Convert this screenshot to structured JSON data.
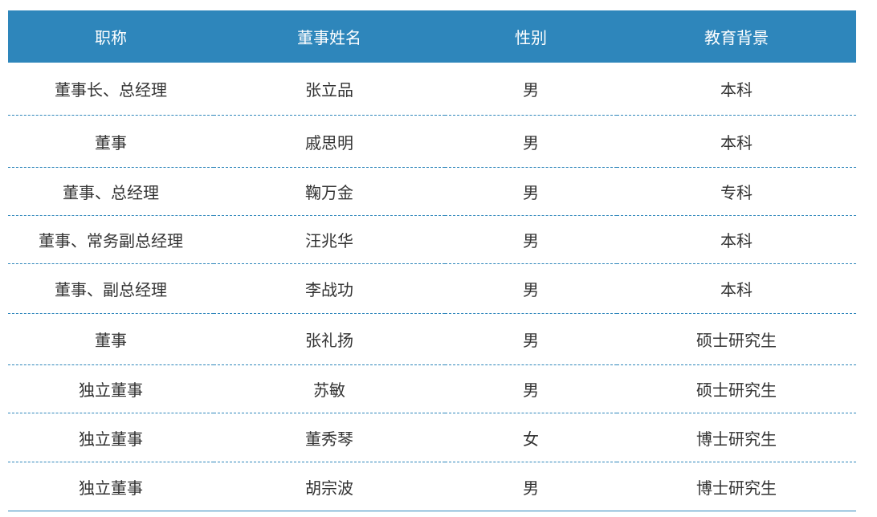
{
  "table": {
    "headers": [
      "职称",
      "董事姓名",
      "性别",
      "教育背景"
    ],
    "rows": [
      [
        "董事长、总经理",
        "张立品",
        "男",
        "本科"
      ],
      [
        "董事",
        "戚思明",
        "男",
        "本科"
      ],
      [
        "董事、总经理",
        "鞠万金",
        "男",
        "专科"
      ],
      [
        "董事、常务副总经理",
        "汪兆华",
        "男",
        "本科"
      ],
      [
        "董事、副总经理",
        "李战功",
        "男",
        "本科"
      ],
      [
        "董事",
        "张礼扬",
        "男",
        "硕士研究生"
      ],
      [
        "独立董事",
        "苏敏",
        "男",
        "硕士研究生"
      ],
      [
        "独立董事",
        "董秀琴",
        "女",
        "博士研究生"
      ],
      [
        "独立董事",
        "胡宗波",
        "男",
        "博士研究生"
      ]
    ],
    "colors": {
      "header_bg": "#2e86bb",
      "divider": "#2e86bb"
    }
  }
}
